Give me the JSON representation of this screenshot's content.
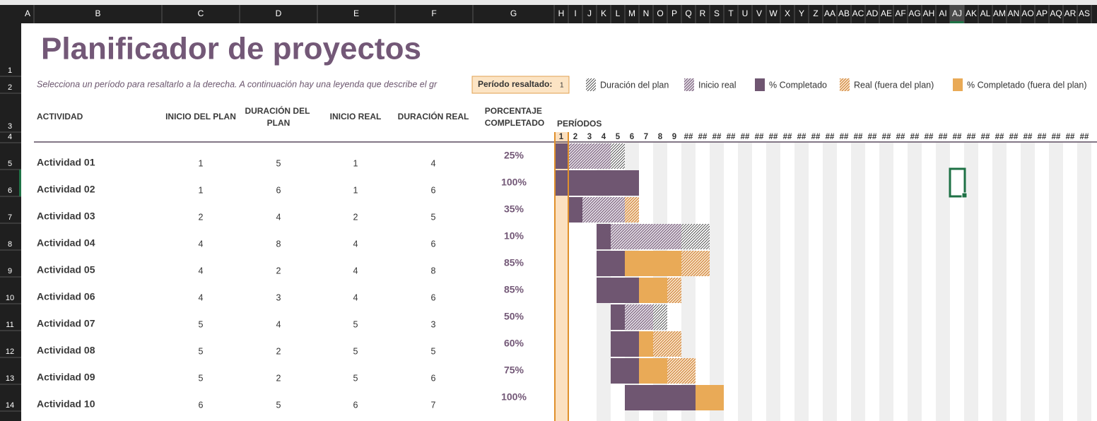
{
  "column_headers": [
    "A",
    "B",
    "C",
    "D",
    "E",
    "F",
    "G",
    "H",
    "I",
    "J",
    "K",
    "L",
    "M",
    "N",
    "O",
    "P",
    "Q",
    "R",
    "S",
    "T",
    "U",
    "V",
    "W",
    "X",
    "Y",
    "Z",
    "AA",
    "AB",
    "AC",
    "AD",
    "AE",
    "AF",
    "AG",
    "AH",
    "AI",
    "AJ",
    "AK",
    "AL",
    "AM",
    "AN",
    "AO",
    "AP",
    "AQ",
    "AR",
    "AS"
  ],
  "row_headers": [
    "1",
    "2",
    "3",
    "4",
    "5",
    "6",
    "7",
    "8",
    "9",
    "10",
    "11",
    "12",
    "13",
    "14"
  ],
  "title": "Planificador de proyectos",
  "instruction": "Selecciona un período para resaltarlo a la derecha.  A continuación hay una leyenda que describe el gr",
  "highlight": {
    "label": "Período resaltado:",
    "value": 1
  },
  "legend": [
    "Duración del plan",
    "Inicio real",
    "% Completado",
    "Real (fuera del plan)",
    "% Completado (fuera del plan)"
  ],
  "headers": {
    "activity": "ACTIVIDAD",
    "plan_start": "INICIO DEL PLAN",
    "plan_duration": "DURACIÓN DEL PLAN",
    "actual_start": "INICIO REAL",
    "actual_duration": "DURACIÓN REAL",
    "percent": "PORCENTAJE COMPLETADO",
    "periods": "PERÍODOS"
  },
  "period_labels": [
    "1",
    "2",
    "3",
    "4",
    "5",
    "6",
    "7",
    "8",
    "9",
    "##",
    "##",
    "##",
    "##",
    "##",
    "##",
    "##",
    "##",
    "##",
    "##",
    "##",
    "##",
    "##",
    "##",
    "##",
    "##",
    "##",
    "##",
    "##",
    "##",
    "##",
    "##",
    "##",
    "##",
    "##",
    "##",
    "##",
    "##",
    "##"
  ],
  "rows": [
    {
      "activity": "Actividad 01",
      "plan_start": 1,
      "plan_duration": 5,
      "actual_start": 1,
      "actual_duration": 4,
      "percent": 25,
      "percent_label": "25%"
    },
    {
      "activity": "Actividad 02",
      "plan_start": 1,
      "plan_duration": 6,
      "actual_start": 1,
      "actual_duration": 6,
      "percent": 100,
      "percent_label": "100%"
    },
    {
      "activity": "Actividad 03",
      "plan_start": 2,
      "plan_duration": 4,
      "actual_start": 2,
      "actual_duration": 5,
      "percent": 35,
      "percent_label": "35%"
    },
    {
      "activity": "Actividad 04",
      "plan_start": 4,
      "plan_duration": 8,
      "actual_start": 4,
      "actual_duration": 6,
      "percent": 10,
      "percent_label": "10%"
    },
    {
      "activity": "Actividad 05",
      "plan_start": 4,
      "plan_duration": 2,
      "actual_start": 4,
      "actual_duration": 8,
      "percent": 85,
      "percent_label": "85%"
    },
    {
      "activity": "Actividad 06",
      "plan_start": 4,
      "plan_duration": 3,
      "actual_start": 4,
      "actual_duration": 6,
      "percent": 85,
      "percent_label": "85%"
    },
    {
      "activity": "Actividad 07",
      "plan_start": 5,
      "plan_duration": 4,
      "actual_start": 5,
      "actual_duration": 3,
      "percent": 50,
      "percent_label": "50%"
    },
    {
      "activity": "Actividad 08",
      "plan_start": 5,
      "plan_duration": 2,
      "actual_start": 5,
      "actual_duration": 5,
      "percent": 60,
      "percent_label": "60%"
    },
    {
      "activity": "Actividad 09",
      "plan_start": 5,
      "plan_duration": 2,
      "actual_start": 5,
      "actual_duration": 6,
      "percent": 75,
      "percent_label": "75%"
    },
    {
      "activity": "Actividad 10",
      "plan_start": 6,
      "plan_duration": 5,
      "actual_start": 6,
      "actual_duration": 7,
      "percent": 100,
      "percent_label": "100%"
    }
  ]
}
